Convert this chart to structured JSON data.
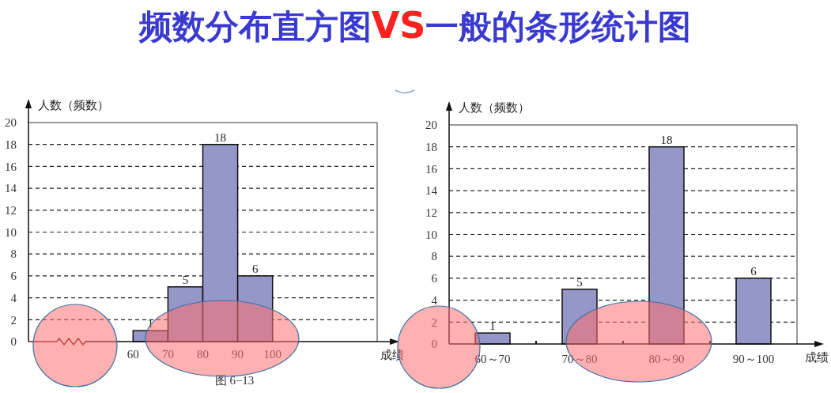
{
  "chart_data": [
    {
      "type": "histogram",
      "title": "频数分布直方图VS一般的条形统计图",
      "bins": [
        60,
        70,
        80,
        90,
        100
      ],
      "values": [
        1,
        5,
        18,
        6
      ],
      "color": "#9497c8",
      "xlim": [
        30,
        130
      ],
      "xticks": [
        60,
        70,
        80,
        90,
        100
      ],
      "ylim": [
        0,
        20
      ],
      "yticks": [
        0,
        2,
        4,
        6,
        8,
        10,
        12,
        14,
        16,
        18,
        20
      ],
      "grid": "y",
      "data_labels": true,
      "xlabel": "成绩",
      "ylabel": "人数（频数）",
      "annotations": [
        "图 6−13"
      ]
    },
    {
      "type": "bar",
      "categories": [
        "60～70",
        "70～80",
        "80～90",
        "90～100"
      ],
      "values": [
        1,
        5,
        18,
        6
      ],
      "color": "#9497c8",
      "ylim": [
        0,
        20
      ],
      "yticks": [
        0,
        2,
        4,
        6,
        8,
        10,
        12,
        14,
        16,
        18,
        20
      ],
      "grid": "y",
      "data_labels": true,
      "xlabel": "成绩",
      "ylabel": "人数（频数）"
    }
  ]
}
